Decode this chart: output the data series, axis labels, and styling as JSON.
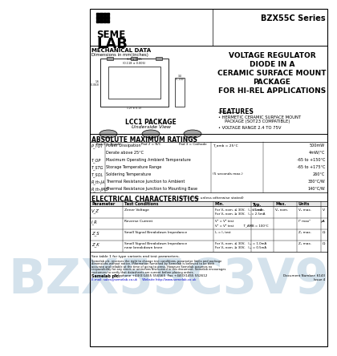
{
  "title_series": "BZX55C Series",
  "mechanical_label": "MECHANICAL DATA",
  "dimensions_label": "Dimensions in mm(inches)",
  "features_label": "FEATURES",
  "features": [
    "HERMETIC CERAMIC SURFACE MOUNT\n  PACKAGE (SOT23 COMPATIBLE)",
    "VOLTAGE RANGE 2.4 TO 75V"
  ],
  "main_title_lines": [
    "VOLTAGE REGULATOR",
    "DIODE IN A",
    "CERAMIC SURFACE MOUNT",
    "PACKAGE",
    "FOR HI-REL APPLICATIONS"
  ],
  "lcc1_label": "LCC1 PACKAGE",
  "underside_label": "Underside View",
  "pad_labels": [
    "Pad 1 = Anode",
    "Pad 2 = N/C",
    "Pad 3 = Cathode"
  ],
  "abs_max_title": "ABSOLUTE MAXIMUM RATINGS",
  "abs_max_rows": [
    [
      "P_TOT",
      "Power Dissipation",
      "T_amb = 25°C",
      "500mW"
    ],
    [
      "",
      "Derate above 25°C",
      "",
      "4mW/°C"
    ],
    [
      "T_OP",
      "Maximum Operating Ambient Temperature",
      "",
      "-65 to +150°C"
    ],
    [
      "T_STG",
      "Storage Temperature Range",
      "",
      "-65 to +175°C"
    ],
    [
      "T_SOL",
      "Soldering Temperature",
      "(5 seconds max.)",
      "260°C"
    ],
    [
      "R_th-JA",
      "Thermal Resistance Junction to Ambient",
      "",
      "330°C/W"
    ],
    [
      "R_th-JMB",
      "Thermal Resistance Junction to Mounting Base",
      "",
      "140°C/W"
    ]
  ],
  "elec_char_title": "ELECTRICAL CHARACTERISTICS",
  "elec_char_subtitle": "(Tₐ = 25°C unless otherwise stated)",
  "elec_char_headers": [
    "Parameter",
    "Test Conditions",
    "Min.",
    "Typ.",
    "Max.",
    "Units"
  ],
  "elec_char_rows": [
    [
      "V_Z",
      "Zener Voltage",
      "For V₂ nom. ≤ 30V,   I₂ = 5mA\nFor V₂ nom. ≥ 30V,   I₂ = 2.5mA",
      "V₂ min.",
      "V₂ nom.",
      "V₂ max.",
      "V"
    ],
    [
      "I_R",
      "Reverse Current",
      "Vᴿ = Vᴿ test\nVᴿ = Vᴿ test          T_AMB = 100°C",
      "",
      "",
      "Iᴿ max²",
      "μA"
    ],
    [
      "Z_S",
      "Small Signal Breakdown Impedance",
      "I₂ = I₂ test",
      "",
      "",
      "Z₂ max.",
      "Ω"
    ],
    [
      "Z_K",
      "Small Signal Breakdown Impedance\nnear breakdown knee",
      "For V₂ nom. ≤ 30V,   I₂ₖ = 1.0mA\nFor V₂ nom. ≥ 30V,   I₂ₖ = 0.5mA",
      "",
      "",
      "Zₖ max.",
      "Ω"
    ]
  ],
  "footer_note": "See table 1 for type variants and test parameters.",
  "footer_legal": "Semelab plc. reserves the right to change test conditions, parameter limits and package dimensions without notice. Information furnished by Semelab is believed to be both accurate and reliable at the time of going to press. However Semelab assumes no responsibility for any errors or omissions discovered in this document. Semelab encourages customers to verify that datasheets are current before placing orders.",
  "contact_bold": "Semelab plc.",
  "contact_info": "  Telephone +44(0)1455 556565  Fax +44(0)1455 552612",
  "contact_email": "E-mail: sales@semelab.co.uk     Website http://www.semelab.co.uk",
  "doc_number": "Document Number: 6143",
  "issue": "Issue 4",
  "bg_color": "#ffffff",
  "watermark_text": "BZX55C3V9",
  "watermark_color": "#b8cfe0"
}
